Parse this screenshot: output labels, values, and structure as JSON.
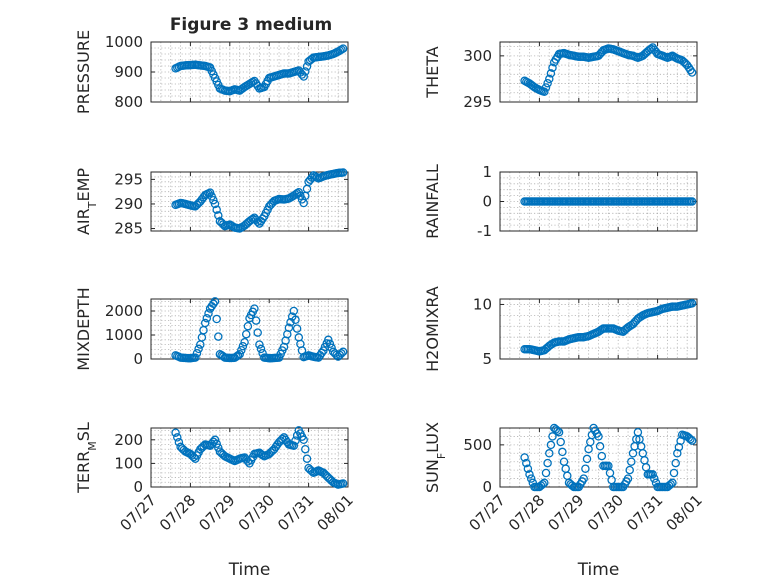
{
  "figure": {
    "title": "Figure 3 medium"
  },
  "colors": {
    "series": "#0072BD",
    "axes": "#262626",
    "grid": "#b0b0b0",
    "background": "#ffffff"
  },
  "chart_data": [
    {
      "type": "scatter",
      "ylabel": "PRESSURE",
      "yticks": [
        800,
        900,
        1000
      ],
      "ylim": [
        800,
        1000
      ],
      "grid": true,
      "x": [
        "07/27 15:00",
        "07/27 18:00",
        "07/27 21:00",
        "07/28 00:00",
        "07/28 03:00",
        "07/28 06:00",
        "07/28 09:00",
        "07/28 12:00",
        "07/28 15:00",
        "07/28 18:00",
        "07/28 21:00",
        "07/29 00:00",
        "07/29 03:00",
        "07/29 06:00",
        "07/29 09:00",
        "07/29 12:00",
        "07/29 15:00",
        "07/29 18:00",
        "07/29 21:00",
        "07/30 00:00",
        "07/30 03:00",
        "07/30 06:00",
        "07/30 09:00",
        "07/30 12:00",
        "07/30 15:00",
        "07/30 18:00",
        "07/30 21:00",
        "07/31 00:00",
        "07/31 03:00",
        "07/31 06:00",
        "07/31 09:00",
        "07/31 12:00",
        "07/31 15:00",
        "07/31 18:00",
        "07/31 21:00"
      ],
      "y": [
        912,
        920,
        922,
        923,
        924,
        922,
        920,
        915,
        880,
        845,
        838,
        836,
        842,
        838,
        850,
        860,
        870,
        845,
        850,
        880,
        885,
        890,
        895,
        895,
        900,
        905,
        885,
        935,
        948,
        950,
        952,
        955,
        960,
        968,
        978
      ]
    },
    {
      "type": "scatter",
      "ylabel": "THETA",
      "yticks": [
        295,
        300
      ],
      "ylim": [
        295,
        301.5
      ],
      "grid": true,
      "x": [
        "07/27 15:00",
        "07/27 18:00",
        "07/27 21:00",
        "07/28 00:00",
        "07/28 03:00",
        "07/28 06:00",
        "07/28 09:00",
        "07/28 12:00",
        "07/28 15:00",
        "07/28 18:00",
        "07/28 21:00",
        "07/29 00:00",
        "07/29 03:00",
        "07/29 06:00",
        "07/29 09:00",
        "07/29 12:00",
        "07/29 15:00",
        "07/29 18:00",
        "07/29 21:00",
        "07/30 00:00",
        "07/30 03:00",
        "07/30 06:00",
        "07/30 09:00",
        "07/30 12:00",
        "07/30 15:00",
        "07/30 18:00",
        "07/30 21:00",
        "07/31 00:00",
        "07/31 03:00",
        "07/31 06:00",
        "07/31 09:00",
        "07/31 12:00",
        "07/31 15:00",
        "07/31 18:00",
        "07/31 21:00"
      ],
      "y": [
        297.3,
        297.0,
        296.6,
        296.3,
        296.1,
        297.5,
        299.3,
        300.2,
        300.3,
        300.1,
        300.0,
        299.9,
        299.9,
        299.8,
        299.9,
        300.0,
        300.6,
        300.8,
        300.7,
        300.5,
        300.3,
        300.1,
        300.0,
        299.8,
        300.0,
        300.5,
        300.9,
        300.2,
        300.0,
        299.8,
        300.0,
        299.7,
        299.5,
        299.0,
        298.2
      ]
    },
    {
      "type": "scatter",
      "ylabel": "AIR_TEMP",
      "yticks": [
        285,
        290,
        295
      ],
      "ylim": [
        284.5,
        296.5
      ],
      "grid": true,
      "x": [
        "07/27 15:00",
        "07/27 18:00",
        "07/27 21:00",
        "07/28 00:00",
        "07/28 03:00",
        "07/28 06:00",
        "07/28 09:00",
        "07/28 12:00",
        "07/28 15:00",
        "07/28 18:00",
        "07/28 21:00",
        "07/29 00:00",
        "07/29 03:00",
        "07/29 06:00",
        "07/29 09:00",
        "07/29 12:00",
        "07/29 15:00",
        "07/29 18:00",
        "07/29 21:00",
        "07/30 00:00",
        "07/30 03:00",
        "07/30 06:00",
        "07/30 09:00",
        "07/30 12:00",
        "07/30 15:00",
        "07/30 18:00",
        "07/30 21:00",
        "07/31 00:00",
        "07/31 03:00",
        "07/31 06:00",
        "07/31 09:00",
        "07/31 12:00",
        "07/31 15:00",
        "07/31 18:00",
        "07/31 21:00"
      ],
      "y": [
        289.8,
        290.2,
        290.0,
        289.7,
        289.5,
        290.5,
        291.8,
        292.3,
        290.0,
        286.5,
        285.5,
        285.8,
        285.2,
        285.0,
        285.6,
        286.5,
        287.2,
        286.0,
        287.5,
        289.5,
        290.6,
        291.0,
        290.9,
        291.1,
        291.7,
        292.4,
        290.2,
        294.5,
        295.8,
        295.2,
        295.6,
        295.9,
        296.1,
        296.3,
        296.4
      ]
    },
    {
      "type": "scatter",
      "ylabel": "RAINFALL",
      "yticks": [
        -1,
        0,
        1
      ],
      "ylim": [
        -1,
        1
      ],
      "grid": true,
      "x": [
        "07/27 15:00",
        "07/27 18:00",
        "07/27 21:00",
        "07/28 00:00",
        "07/28 03:00",
        "07/28 06:00",
        "07/28 09:00",
        "07/28 12:00",
        "07/28 15:00",
        "07/28 18:00",
        "07/28 21:00",
        "07/29 00:00",
        "07/29 03:00",
        "07/29 06:00",
        "07/29 09:00",
        "07/29 12:00",
        "07/29 15:00",
        "07/29 18:00",
        "07/29 21:00",
        "07/30 00:00",
        "07/30 03:00",
        "07/30 06:00",
        "07/30 09:00",
        "07/30 12:00",
        "07/30 15:00",
        "07/30 18:00",
        "07/30 21:00",
        "07/31 00:00",
        "07/31 03:00",
        "07/31 06:00",
        "07/31 09:00",
        "07/31 12:00",
        "07/31 15:00",
        "07/31 18:00",
        "07/31 21:00"
      ],
      "y": [
        0,
        0,
        0,
        0,
        0,
        0,
        0,
        0,
        0,
        0,
        0,
        0,
        0,
        0,
        0,
        0,
        0,
        0,
        0,
        0,
        0,
        0,
        0,
        0,
        0,
        0,
        0,
        0,
        0,
        0,
        0,
        0,
        0,
        0,
        0
      ]
    },
    {
      "type": "scatter",
      "ylabel": "MIXDEPTH",
      "yticks": [
        0,
        1000,
        2000
      ],
      "ylim": [
        0,
        2500
      ],
      "grid": true,
      "x": [
        "07/27 15:00",
        "07/27 18:00",
        "07/27 21:00",
        "07/28 00:00",
        "07/28 03:00",
        "07/28 06:00",
        "07/28 09:00",
        "07/28 12:00",
        "07/28 15:00",
        "07/28 18:00",
        "07/28 21:00",
        "07/29 00:00",
        "07/29 03:00",
        "07/29 06:00",
        "07/29 09:00",
        "07/29 12:00",
        "07/29 15:00",
        "07/29 18:00",
        "07/29 21:00",
        "07/30 00:00",
        "07/30 03:00",
        "07/30 06:00",
        "07/30 09:00",
        "07/30 12:00",
        "07/30 15:00",
        "07/30 18:00",
        "07/30 21:00",
        "07/31 00:00",
        "07/31 03:00",
        "07/31 06:00",
        "07/31 09:00",
        "07/31 12:00",
        "07/31 15:00",
        "07/31 18:00",
        "07/31 21:00"
      ],
      "y": [
        150,
        60,
        40,
        30,
        60,
        600,
        1500,
        2100,
        2400,
        200,
        60,
        40,
        50,
        200,
        700,
        1700,
        2100,
        600,
        60,
        30,
        40,
        60,
        500,
        1300,
        2000,
        900,
        80,
        150,
        90,
        60,
        350,
        800,
        300,
        100,
        300
      ]
    },
    {
      "type": "scatter",
      "ylabel": "H2OMIXRA",
      "yticks": [
        5,
        10
      ],
      "ylim": [
        5,
        10.5
      ],
      "grid": true,
      "x": [
        "07/27 15:00",
        "07/27 18:00",
        "07/27 21:00",
        "07/28 00:00",
        "07/28 03:00",
        "07/28 06:00",
        "07/28 09:00",
        "07/28 12:00",
        "07/28 15:00",
        "07/28 18:00",
        "07/28 21:00",
        "07/29 00:00",
        "07/29 03:00",
        "07/29 06:00",
        "07/29 09:00",
        "07/29 12:00",
        "07/29 15:00",
        "07/29 18:00",
        "07/29 21:00",
        "07/30 00:00",
        "07/30 03:00",
        "07/30 06:00",
        "07/30 09:00",
        "07/30 12:00",
        "07/30 15:00",
        "07/30 18:00",
        "07/30 21:00",
        "07/31 00:00",
        "07/31 03:00",
        "07/31 06:00",
        "07/31 09:00",
        "07/31 12:00",
        "07/31 15:00",
        "07/31 18:00",
        "07/31 21:00"
      ],
      "y": [
        5.9,
        5.9,
        5.8,
        5.7,
        5.8,
        6.2,
        6.5,
        6.6,
        6.6,
        6.8,
        6.9,
        7.0,
        7.0,
        7.1,
        7.3,
        7.5,
        7.8,
        7.8,
        7.8,
        7.6,
        7.5,
        7.9,
        8.2,
        8.7,
        9.0,
        9.2,
        9.3,
        9.4,
        9.6,
        9.7,
        9.8,
        9.8,
        9.9,
        10.0,
        10.1
      ]
    },
    {
      "type": "scatter",
      "ylabel": "TERR_MSL",
      "yticks": [
        0,
        100,
        200
      ],
      "ylim": [
        0,
        250
      ],
      "grid": true,
      "x": [
        "07/27 15:00",
        "07/27 18:00",
        "07/27 21:00",
        "07/28 00:00",
        "07/28 03:00",
        "07/28 06:00",
        "07/28 09:00",
        "07/28 12:00",
        "07/28 15:00",
        "07/28 18:00",
        "07/28 21:00",
        "07/29 00:00",
        "07/29 03:00",
        "07/29 06:00",
        "07/29 09:00",
        "07/29 12:00",
        "07/29 15:00",
        "07/29 18:00",
        "07/29 21:00",
        "07/30 00:00",
        "07/30 03:00",
        "07/30 06:00",
        "07/30 09:00",
        "07/30 12:00",
        "07/30 15:00",
        "07/30 18:00",
        "07/30 21:00",
        "07/31 00:00",
        "07/31 03:00",
        "07/31 06:00",
        "07/31 09:00",
        "07/31 12:00",
        "07/31 15:00",
        "07/31 18:00",
        "07/31 21:00"
      ],
      "y": [
        230,
        170,
        150,
        140,
        120,
        160,
        180,
        175,
        200,
        150,
        130,
        120,
        110,
        120,
        125,
        100,
        140,
        145,
        130,
        140,
        160,
        190,
        210,
        180,
        175,
        240,
        200,
        80,
        60,
        70,
        60,
        40,
        20,
        10,
        15
      ]
    },
    {
      "type": "scatter",
      "ylabel": "SUN_FLUX",
      "yticks": [
        0,
        500
      ],
      "ylim": [
        0,
        700
      ],
      "grid": true,
      "x": [
        "07/27 15:00",
        "07/27 18:00",
        "07/27 21:00",
        "07/28 00:00",
        "07/28 03:00",
        "07/28 06:00",
        "07/28 09:00",
        "07/28 12:00",
        "07/28 15:00",
        "07/28 18:00",
        "07/28 21:00",
        "07/29 00:00",
        "07/29 03:00",
        "07/29 06:00",
        "07/29 09:00",
        "07/29 12:00",
        "07/29 15:00",
        "07/29 18:00",
        "07/29 21:00",
        "07/30 00:00",
        "07/30 03:00",
        "07/30 06:00",
        "07/30 09:00",
        "07/30 12:00",
        "07/30 15:00",
        "07/30 18:00",
        "07/30 21:00",
        "07/31 00:00",
        "07/31 03:00",
        "07/31 06:00",
        "07/31 09:00",
        "07/31 12:00",
        "07/31 15:00",
        "07/31 18:00",
        "07/31 21:00"
      ],
      "y": [
        350,
        150,
        0,
        0,
        50,
        400,
        700,
        650,
        300,
        50,
        0,
        0,
        100,
        450,
        700,
        600,
        250,
        250,
        0,
        0,
        0,
        100,
        400,
        650,
        400,
        150,
        150,
        0,
        0,
        0,
        50,
        400,
        620,
        600,
        550
      ]
    }
  ],
  "x_axis": {
    "ticks": [
      "07/27",
      "07/28",
      "07/29",
      "07/30",
      "07/31",
      "08/01"
    ],
    "xlim": [
      "07/27 00:00",
      "08/01 00:00"
    ],
    "xlabel": "Time"
  }
}
